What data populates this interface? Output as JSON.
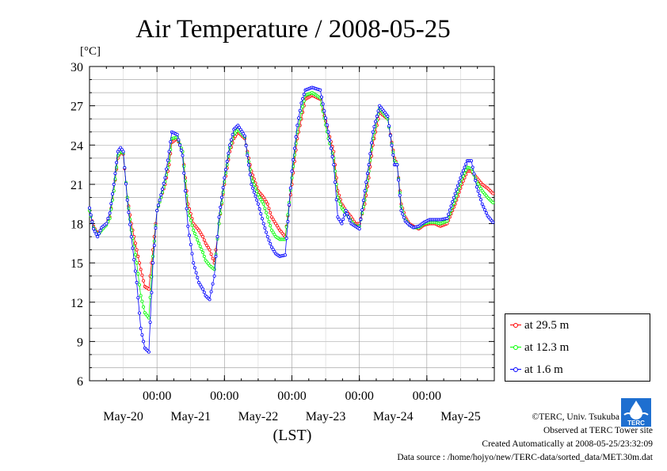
{
  "title": "Air Temperature / 2008-05-25",
  "credits": {
    "copyright": "©TERC, Univ. Tsukuba",
    "observed": "Observed at TERC Tower site",
    "created": "Created Automatically at 2008-05-25/23:32:09",
    "source": "Data source : /home/hojyo/new/TERC-data/sorted_data/MET.30m.dat"
  },
  "logo": {
    "text": "TERC"
  },
  "chart_data": {
    "type": "line",
    "title": "Air Temperature / 2008-05-25",
    "ylabel": "[°C]",
    "xlabel": "(LST)",
    "ylim": [
      6,
      30
    ],
    "yticks": [
      6,
      9,
      12,
      15,
      18,
      21,
      24,
      27,
      30
    ],
    "xlim": [
      0,
      6
    ],
    "xtick_time_labels": [
      "00:00",
      "00:00",
      "00:00",
      "00:00",
      "00:00"
    ],
    "xtick_time_positions": [
      1,
      2,
      3,
      4,
      5
    ],
    "xtick_date_labels": [
      "May-20",
      "May-21",
      "May-22",
      "May-23",
      "May-24",
      "May-25"
    ],
    "xtick_date_positions": [
      0.5,
      1.5,
      2.5,
      3.5,
      4.5,
      5.5
    ],
    "grid": true,
    "legend_position": "right",
    "series": [
      {
        "name": "at 29.5 m",
        "color": "#ff0000",
        "x": [
          0,
          0.06,
          0.12,
          0.18,
          0.25,
          0.3,
          0.36,
          0.42,
          0.46,
          0.5,
          0.56,
          0.62,
          0.7,
          0.76,
          0.82,
          0.88,
          0.94,
          1.0,
          1.06,
          1.12,
          1.18,
          1.22,
          1.3,
          1.38,
          1.46,
          1.54,
          1.62,
          1.68,
          1.72,
          1.78,
          1.85,
          1.92,
          2.0,
          2.08,
          2.14,
          2.2,
          2.3,
          2.4,
          2.5,
          2.58,
          2.64,
          2.7,
          2.76,
          2.82,
          2.9,
          3.0,
          3.08,
          3.14,
          3.2,
          3.3,
          3.42,
          3.54,
          3.62,
          3.68,
          3.74,
          3.8,
          3.88,
          3.94,
          4.0,
          4.08,
          4.14,
          4.2,
          4.3,
          4.42,
          4.52,
          4.56,
          4.62,
          4.68,
          4.74,
          4.8,
          4.88,
          4.96,
          5.04,
          5.12,
          5.2,
          5.3,
          5.42,
          5.52,
          5.6,
          5.66,
          5.74,
          5.82,
          5.9,
          5.98
        ],
        "y": [
          19,
          17.8,
          17.2,
          17.6,
          18,
          18.5,
          20.5,
          23,
          23.5,
          23.3,
          20,
          18,
          16,
          14.5,
          13.2,
          13,
          16,
          19,
          20,
          21,
          22.5,
          24.2,
          24.5,
          23.5,
          19.5,
          18,
          17.5,
          17,
          16.5,
          16,
          15,
          18,
          21,
          23.5,
          24.5,
          25,
          24.5,
          22,
          20.5,
          20,
          19.5,
          18.5,
          18,
          17.5,
          17,
          21,
          24.5,
          26,
          27.5,
          27.8,
          27.5,
          25,
          23.5,
          20.5,
          19.5,
          19,
          18.5,
          18,
          18,
          19.5,
          21.5,
          24,
          26.5,
          26,
          23,
          22.5,
          19.5,
          18.5,
          18,
          17.8,
          17.6,
          17.9,
          18,
          18,
          17.8,
          18,
          19.5,
          21,
          22,
          22,
          21.5,
          21,
          20.7,
          20.3
        ]
      },
      {
        "name": "at 12.3 m",
        "color": "#00ff00",
        "x": [
          0,
          0.06,
          0.12,
          0.18,
          0.25,
          0.3,
          0.36,
          0.42,
          0.46,
          0.5,
          0.56,
          0.62,
          0.7,
          0.76,
          0.82,
          0.88,
          0.94,
          1.0,
          1.06,
          1.12,
          1.18,
          1.22,
          1.3,
          1.38,
          1.46,
          1.54,
          1.62,
          1.68,
          1.72,
          1.78,
          1.85,
          1.92,
          2.0,
          2.08,
          2.14,
          2.2,
          2.3,
          2.4,
          2.5,
          2.58,
          2.64,
          2.7,
          2.76,
          2.82,
          2.9,
          3.0,
          3.08,
          3.14,
          3.2,
          3.3,
          3.42,
          3.54,
          3.62,
          3.68,
          3.74,
          3.8,
          3.88,
          3.94,
          4.0,
          4.08,
          4.14,
          4.2,
          4.3,
          4.42,
          4.52,
          4.56,
          4.62,
          4.68,
          4.74,
          4.8,
          4.88,
          4.96,
          5.04,
          5.12,
          5.2,
          5.3,
          5.42,
          5.52,
          5.6,
          5.66,
          5.74,
          5.82,
          5.9,
          5.98
        ],
        "y": [
          19,
          17.7,
          17.1,
          17.5,
          17.9,
          18.4,
          20.5,
          23.2,
          23.5,
          23.4,
          20,
          17.5,
          15,
          12.5,
          11.2,
          10.8,
          15.5,
          19,
          20,
          21.2,
          22.8,
          24.5,
          24.6,
          23.5,
          19,
          17.5,
          16.5,
          15.8,
          15.2,
          14.8,
          14.5,
          18,
          21.2,
          23.8,
          24.8,
          25.2,
          24.6,
          21.5,
          20.2,
          19.5,
          18.5,
          17.5,
          17,
          16.8,
          16.8,
          21.5,
          25,
          26.5,
          27.8,
          28,
          27.6,
          24.5,
          23,
          20,
          19.2,
          18.8,
          18.2,
          17.8,
          17.8,
          19.8,
          22,
          24.5,
          26.8,
          26,
          22.8,
          22.5,
          19.3,
          18.3,
          17.9,
          17.7,
          17.7,
          18,
          18.1,
          18.1,
          18,
          18.2,
          19.8,
          21.4,
          22.3,
          22.2,
          21.2,
          20.5,
          20,
          19.6
        ]
      },
      {
        "name": "at 1.6 m",
        "color": "#0000ff",
        "x": [
          0,
          0.06,
          0.12,
          0.18,
          0.25,
          0.3,
          0.36,
          0.42,
          0.46,
          0.5,
          0.56,
          0.62,
          0.7,
          0.76,
          0.82,
          0.88,
          0.94,
          1.0,
          1.06,
          1.12,
          1.18,
          1.22,
          1.3,
          1.38,
          1.46,
          1.54,
          1.62,
          1.68,
          1.72,
          1.78,
          1.85,
          1.92,
          2.0,
          2.08,
          2.14,
          2.2,
          2.3,
          2.4,
          2.5,
          2.58,
          2.64,
          2.7,
          2.76,
          2.82,
          2.9,
          3.0,
          3.08,
          3.14,
          3.2,
          3.3,
          3.42,
          3.54,
          3.62,
          3.68,
          3.74,
          3.8,
          3.88,
          3.94,
          4.0,
          4.08,
          4.14,
          4.2,
          4.3,
          4.42,
          4.52,
          4.56,
          4.62,
          4.68,
          4.74,
          4.8,
          4.88,
          4.96,
          5.04,
          5.12,
          5.2,
          5.3,
          5.42,
          5.52,
          5.6,
          5.66,
          5.74,
          5.82,
          5.9,
          5.98
        ],
        "y": [
          19.2,
          17.6,
          17,
          17.7,
          18,
          18.8,
          21,
          23.5,
          23.8,
          23.5,
          19.8,
          17,
          13.5,
          10,
          8.5,
          8.2,
          15,
          19,
          20.2,
          21.5,
          23.5,
          25,
          24.8,
          23.2,
          17.8,
          15,
          13.5,
          13,
          12.5,
          12.2,
          14,
          18.5,
          21.5,
          24,
          25.2,
          25.5,
          24.7,
          21,
          19.5,
          18,
          17,
          16.2,
          15.7,
          15.5,
          15.6,
          22,
          25.5,
          27.2,
          28.2,
          28.4,
          28.2,
          25,
          22.5,
          18.5,
          18,
          19,
          18,
          17.8,
          17.6,
          20.5,
          22.5,
          25,
          27,
          26.2,
          22.5,
          22.5,
          19,
          18.2,
          17.9,
          17.7,
          17.8,
          18.1,
          18.3,
          18.3,
          18.3,
          18.4,
          20.3,
          21.8,
          22.8,
          22.8,
          20.8,
          19.5,
          18.6,
          18.1
        ]
      }
    ]
  }
}
